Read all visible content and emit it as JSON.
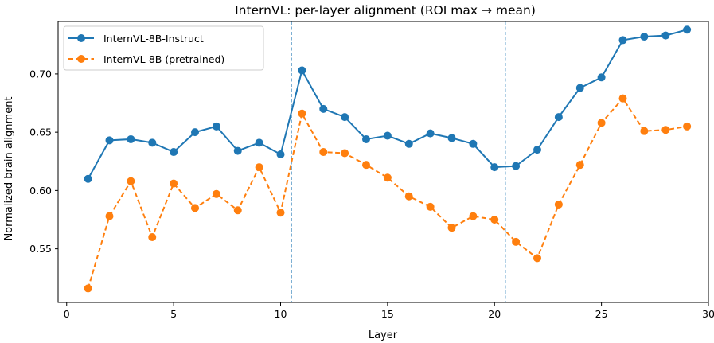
{
  "chart_data": {
    "type": "line",
    "title": "InternVL: per-layer alignment (ROI max → mean)",
    "xlabel": "Layer",
    "ylabel": "Normalized brain alignment",
    "xlim": [
      -0.4,
      30.0
    ],
    "ylim": [
      0.504,
      0.745
    ],
    "xticks": [
      0,
      5,
      10,
      15,
      20,
      25,
      30
    ],
    "xtick_labels": [
      "0",
      "5",
      "10",
      "15",
      "20",
      "25",
      "30"
    ],
    "yticks": [
      0.55,
      0.6,
      0.65,
      0.7
    ],
    "ytick_labels": [
      "0.55",
      "0.60",
      "0.65",
      "0.70"
    ],
    "vlines": [
      10.5,
      20.5
    ],
    "grid": false,
    "legend_position": "upper-left",
    "x": [
      1,
      2,
      3,
      4,
      5,
      6,
      7,
      8,
      9,
      10,
      11,
      12,
      13,
      14,
      15,
      16,
      17,
      18,
      19,
      20,
      21,
      22,
      23,
      24,
      25,
      26,
      27,
      28,
      29
    ],
    "series": [
      {
        "name": "InternVL-8B-Instruct",
        "color": "#1f77b4",
        "style": "solid",
        "values": [
          0.61,
          0.643,
          0.644,
          0.641,
          0.633,
          0.65,
          0.655,
          0.634,
          0.641,
          0.631,
          0.703,
          0.67,
          0.663,
          0.644,
          0.647,
          0.64,
          0.649,
          0.645,
          0.64,
          0.62,
          0.621,
          0.635,
          0.663,
          0.688,
          0.697,
          0.729,
          0.732,
          0.733,
          0.738
        ]
      },
      {
        "name": "InternVL-8B (pretrained)",
        "color": "#ff7f0e",
        "style": "dashed",
        "values": [
          0.516,
          0.578,
          0.608,
          0.56,
          0.606,
          0.585,
          0.597,
          0.583,
          0.62,
          0.581,
          0.666,
          0.633,
          0.632,
          0.622,
          0.611,
          0.595,
          0.586,
          0.568,
          0.578,
          0.575,
          0.556,
          0.542,
          0.588,
          0.622,
          0.658,
          0.679,
          0.651,
          0.652,
          0.655
        ]
      }
    ]
  }
}
